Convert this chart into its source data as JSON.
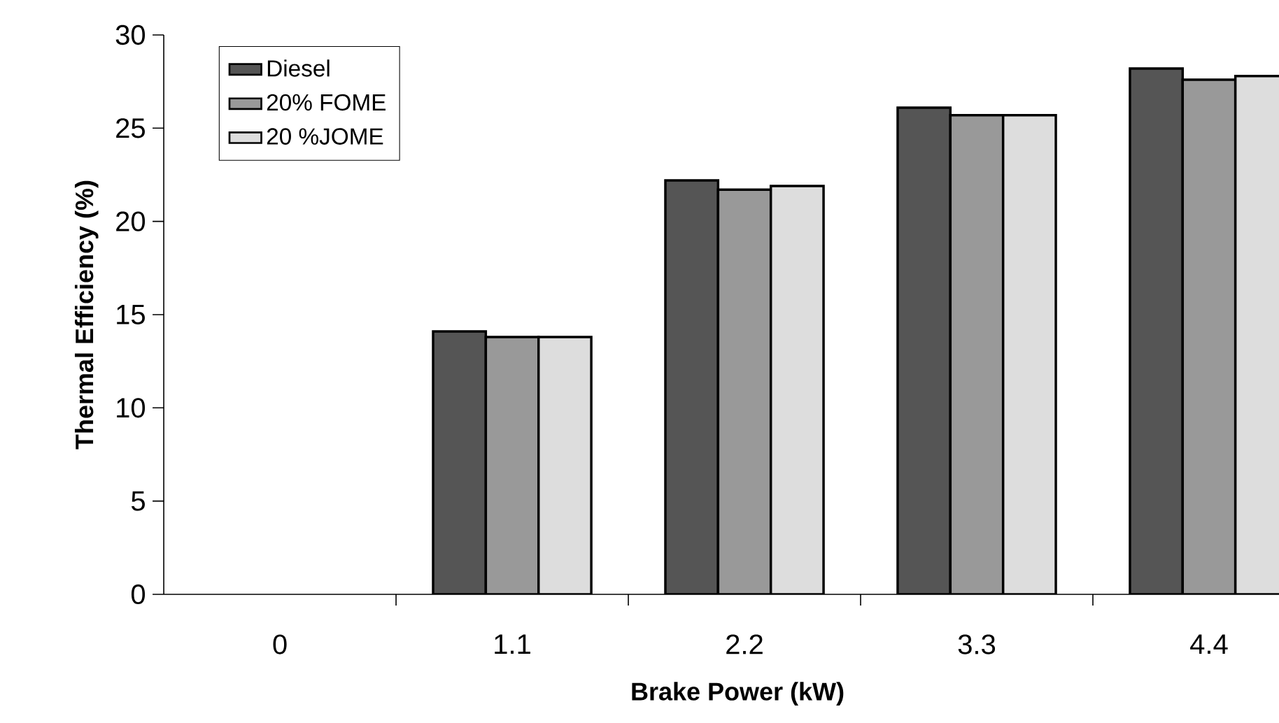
{
  "chart_data": {
    "type": "bar",
    "xlabel": "Brake Power (kW)",
    "ylabel": "Thermal Efficiency (%)",
    "categories": [
      "0",
      "1.1",
      "2.2",
      "3.3",
      "4.4"
    ],
    "series": [
      {
        "name": "Diesel",
        "color": "#555555",
        "values": [
          null,
          14.1,
          22.2,
          26.1,
          28.2
        ]
      },
      {
        "name": "20% FOME",
        "color": "#999999",
        "values": [
          null,
          13.8,
          21.7,
          25.7,
          27.6
        ]
      },
      {
        "name": "20 %JOME",
        "color": "#dddddd",
        "values": [
          null,
          13.8,
          21.9,
          25.7,
          27.8
        ]
      }
    ],
    "ylim": [
      0,
      30
    ],
    "yticks": [
      0,
      5,
      10,
      15,
      20,
      25,
      30
    ],
    "grid": false,
    "legend": "top left"
  }
}
